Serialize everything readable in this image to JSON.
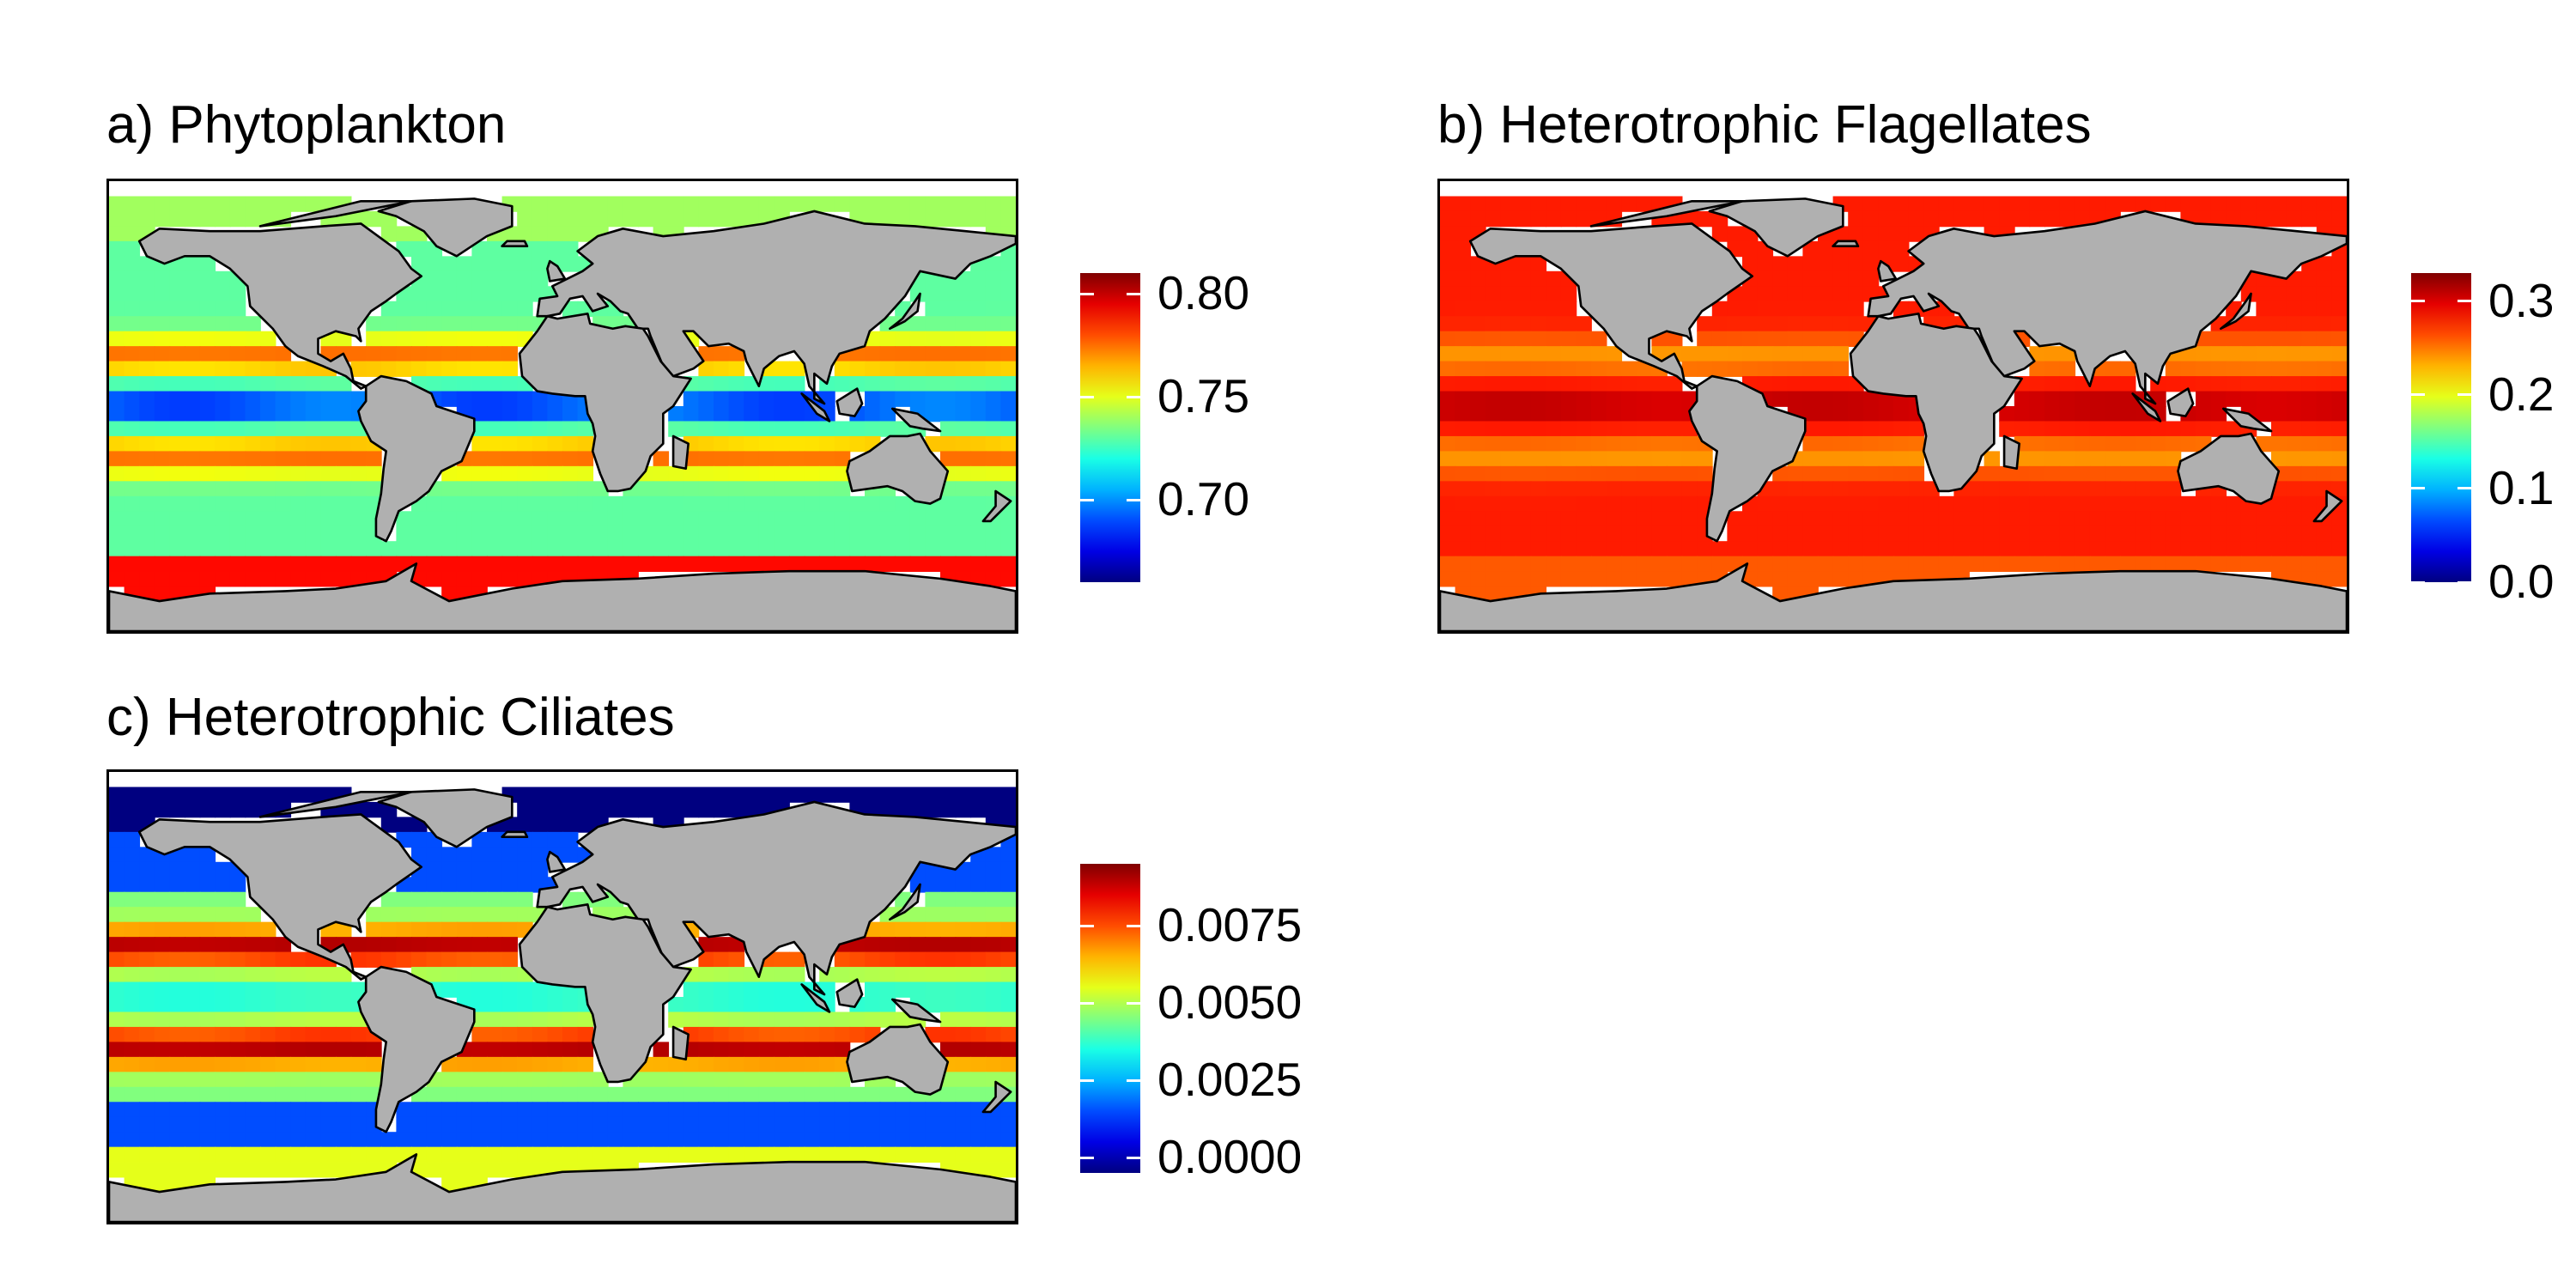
{
  "panels": [
    {
      "title": "a) Phytoplankton",
      "legend": {
        "min": 0.66,
        "max": 0.81,
        "ticks": [
          0.7,
          0.75,
          0.8
        ],
        "tick_labels": [
          "0.70",
          "0.75",
          "0.80"
        ]
      },
      "field": {
        "base": 0.73,
        "subtropical_gyre": 0.045,
        "equatorial": -0.045,
        "high_latitude": 0.0,
        "southern_ocean": 0.06,
        "arctic": 0.01
      }
    },
    {
      "title": "b) Heterotrophic Flagellates",
      "legend": {
        "min": 0.0,
        "max": 0.33,
        "ticks": [
          0.0,
          0.1,
          0.2,
          0.3
        ],
        "tick_labels": [
          "0.0",
          "0.1",
          "0.2",
          "0.3"
        ]
      },
      "field": {
        "base": 0.28,
        "subtropical_gyre": -0.04,
        "equatorial": 0.03,
        "high_latitude": 0.0,
        "southern_ocean": -0.02,
        "arctic": 0.0
      }
    },
    {
      "title": "c) Heterotrophic Ciliates",
      "legend": {
        "min": -0.0005,
        "max": 0.0095,
        "ticks": [
          0.0,
          0.0025,
          0.005,
          0.0075
        ],
        "tick_labels": [
          "0.0000",
          "0.0025",
          "0.0050",
          "0.0075"
        ]
      },
      "field": {
        "base": 0.0045,
        "subtropical_gyre": 0.0045,
        "equatorial": -0.001,
        "high_latitude": -0.003,
        "southern_ocean": 0.004,
        "arctic": -0.002
      }
    }
  ],
  "colors": {
    "land": "#b0b0b0",
    "coastline": "#000000",
    "ice": "#ffffff"
  }
}
